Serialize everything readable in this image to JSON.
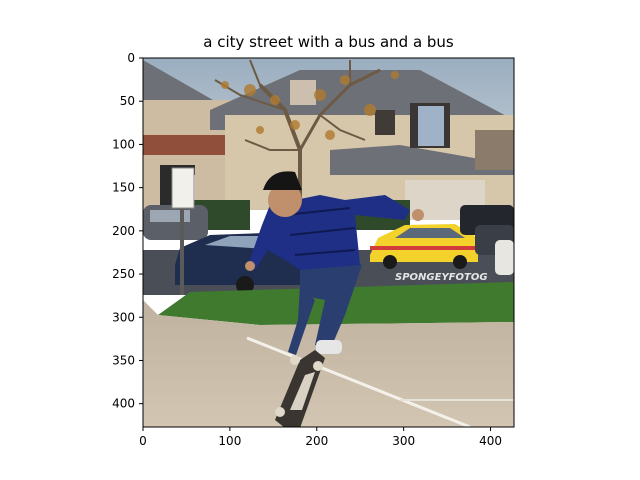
{
  "figure": {
    "title": "a city street with a bus and a bus",
    "image_description": "",
    "watermark": "SPONGEYFOTOG",
    "x_axis": {
      "range": [
        0,
        427
      ],
      "ticks": [
        0,
        100,
        200,
        300,
        400
      ]
    },
    "y_axis": {
      "range": [
        0,
        427
      ],
      "inverted": true,
      "ticks": [
        0,
        50,
        100,
        150,
        200,
        250,
        300,
        350,
        400
      ]
    }
  },
  "colors": {
    "sky": "#a7b7c6",
    "house": "#c9b79c",
    "roof_tile": "#8f4f3a",
    "roof_grey": "#6e7077",
    "lawn": "#3f7a2f",
    "concrete": "#c5b8a4",
    "street": "#4a4f57",
    "shirt": "#1f2f86",
    "jeans": "#2a3f6f",
    "yellow_car": "#f3d22c",
    "red_car_stripe": "#d33b3b",
    "blue_car": "#1f2d4f"
  }
}
